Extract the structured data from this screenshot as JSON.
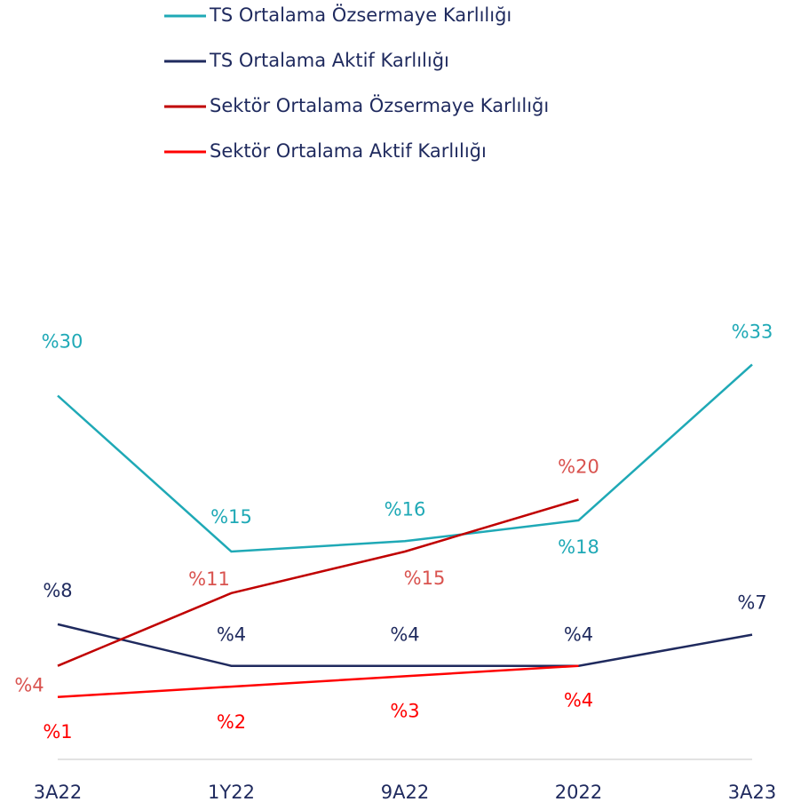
{
  "chart_data": {
    "type": "line",
    "categories": [
      "3A22",
      "1Y22",
      "9A22",
      "2022",
      "3A23"
    ],
    "series": [
      {
        "name": "TS Ortalama Özsermaye Karlılığı",
        "color": "#1fa9b6",
        "values": [
          30,
          15,
          16,
          18,
          33
        ],
        "value_labels": [
          "%30",
          "%15",
          "%16",
          "%18",
          "%33"
        ]
      },
      {
        "name": "TS Ortalama Aktif Karlılığı",
        "color": "#1f2a5e",
        "values": [
          8,
          4,
          4,
          4,
          7
        ],
        "value_labels": [
          "%8",
          "%4",
          "%4",
          "%4",
          "%7"
        ]
      },
      {
        "name": "Sektör Ortalama Özsermaye Karlılığı",
        "color": "#c00000",
        "values": [
          4,
          11,
          15,
          20,
          null
        ],
        "value_labels": [
          "%4",
          "%11",
          "%15",
          "%20",
          null
        ]
      },
      {
        "name": "Sektör Ortalama Aktif Karlılığı",
        "color": "#ff0000",
        "values": [
          1,
          2,
          3,
          4,
          null
        ],
        "value_labels": [
          "%1",
          "%2",
          "%3",
          "%4",
          null
        ]
      }
    ],
    "ylim": [
      -5,
      35
    ]
  }
}
